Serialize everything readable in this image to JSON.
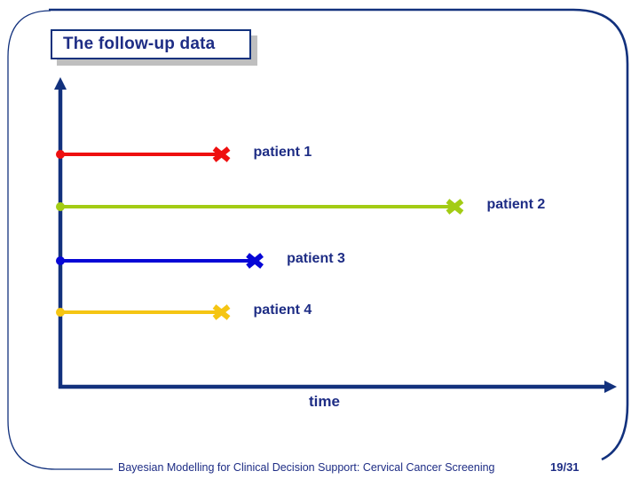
{
  "slide": {
    "title": "The follow-up data",
    "xlabel": "time",
    "footer": {
      "text": "Bayesian Modelling for Clinical Decision Support: Cervical Cancer Screening",
      "page": "19/31"
    }
  },
  "colors": {
    "navy": "#12317d",
    "text_navy": "#1e2d85",
    "title_shadow": "#bfbfbf",
    "background": "#ffffff"
  },
  "chart_data": {
    "type": "timeline",
    "title": "The follow-up data",
    "xlabel": "time",
    "ylabel": "",
    "x_axis": {
      "range": [
        0,
        1
      ],
      "ticks": "none",
      "arrow": true
    },
    "y_axis": {
      "ticks": "none",
      "arrow": true
    },
    "start_marker": "filled-circle-on-axis",
    "end_marker": "x-cross",
    "grid": false,
    "legend": "inline-right-of-line",
    "series": [
      {
        "name": "patient 1",
        "color": "#ee0f0f",
        "start": 0.0,
        "end": 0.29
      },
      {
        "name": "patient 2",
        "color": "#a3cc14",
        "start": 0.0,
        "end": 0.71
      },
      {
        "name": "patient 3",
        "color": "#0707d6",
        "start": 0.0,
        "end": 0.35
      },
      {
        "name": "patient 4",
        "color": "#f5c513",
        "start": 0.0,
        "end": 0.29
      }
    ]
  }
}
